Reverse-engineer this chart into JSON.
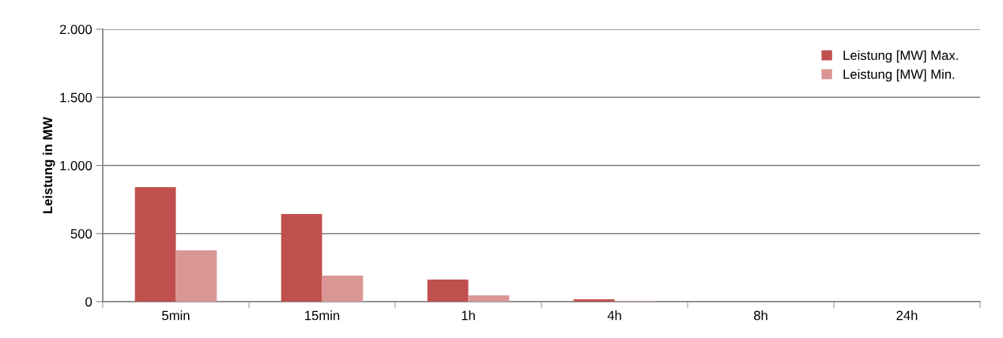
{
  "chart_data": {
    "type": "bar",
    "ylabel": "Leistung in MW",
    "categories": [
      "5min",
      "15min",
      "1h",
      "4h",
      "8h",
      "24h"
    ],
    "series": [
      {
        "name": "Leistung [MW] Max.",
        "color": "#c0504d",
        "values": [
          840,
          643,
          162,
          17,
          0,
          0
        ]
      },
      {
        "name": "Leistung [MW] Min.",
        "color": "#d99694",
        "values": [
          377,
          191,
          46,
          3,
          0,
          0
        ]
      }
    ],
    "ylim": [
      0,
      2000
    ],
    "yticks": [
      {
        "value": 0,
        "label": "0"
      },
      {
        "value": 500,
        "label": "500"
      },
      {
        "value": 1000,
        "label": "1.000"
      },
      {
        "value": 1500,
        "label": "1.500"
      },
      {
        "value": 2000,
        "label": "2.000"
      }
    ],
    "grid": "y",
    "legend": "top right"
  }
}
